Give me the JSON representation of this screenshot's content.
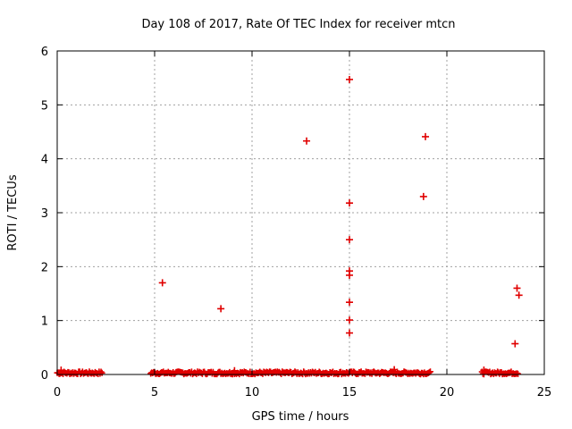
{
  "chart_data": {
    "type": "scatter",
    "title": "Day 108 of 2017, Rate Of TEC Index for receiver mtcn",
    "xlabel": "GPS time / hours",
    "ylabel": "ROTI / TECUs",
    "xlim": [
      0,
      25
    ],
    "ylim": [
      0,
      6
    ],
    "xticks": [
      0,
      5,
      10,
      15,
      20,
      25
    ],
    "yticks": [
      0,
      1,
      2,
      3,
      4,
      5,
      6
    ],
    "grid": true,
    "marker": "plus",
    "color": "#e00000",
    "observation_gaps_hours": [
      [
        2.4,
        4.7
      ],
      [
        19.3,
        21.7
      ],
      [
        23.8,
        25
      ]
    ],
    "baseline_spans_hours": [
      [
        0.0,
        2.3
      ],
      [
        4.8,
        19.2
      ],
      [
        21.8,
        23.7
      ]
    ],
    "baseline_level": 0.03,
    "points": [
      {
        "x": 5.4,
        "y": 1.7
      },
      {
        "x": 8.4,
        "y": 1.22
      },
      {
        "x": 12.8,
        "y": 4.33
      },
      {
        "x": 15.0,
        "y": 5.47
      },
      {
        "x": 15.0,
        "y": 3.18
      },
      {
        "x": 15.0,
        "y": 2.5
      },
      {
        "x": 15.0,
        "y": 1.92
      },
      {
        "x": 15.0,
        "y": 1.84
      },
      {
        "x": 15.0,
        "y": 1.34
      },
      {
        "x": 15.0,
        "y": 1.01
      },
      {
        "x": 15.0,
        "y": 0.77
      },
      {
        "x": 18.8,
        "y": 3.3
      },
      {
        "x": 18.9,
        "y": 4.41
      },
      {
        "x": 23.6,
        "y": 1.6
      },
      {
        "x": 23.7,
        "y": 1.47
      },
      {
        "x": 23.5,
        "y": 0.57
      },
      {
        "x": 0.2,
        "y": 0.08
      },
      {
        "x": 9.1,
        "y": 0.07
      },
      {
        "x": 17.3,
        "y": 0.09
      },
      {
        "x": 21.9,
        "y": 0.08
      }
    ]
  }
}
